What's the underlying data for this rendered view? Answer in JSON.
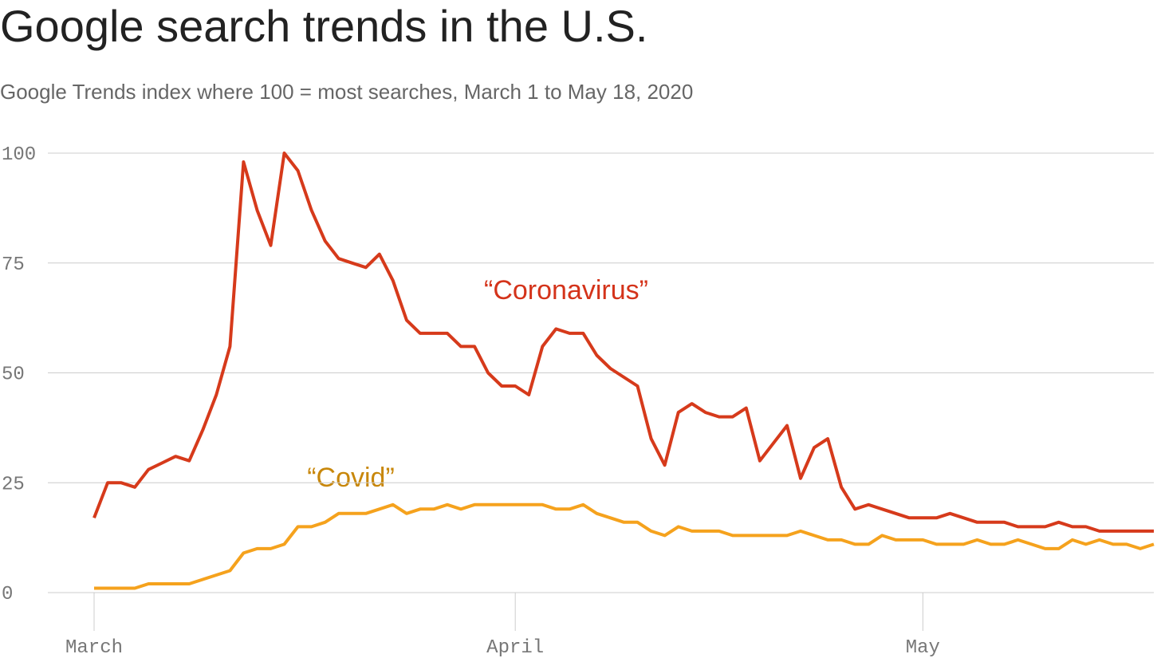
{
  "chart_data": {
    "type": "line",
    "title": "Google search trends in the U.S.",
    "subtitle": "Google Trends index where 100 = most searches, March 1 to May 18, 2020",
    "categories": [
      "March",
      null,
      null,
      null,
      null,
      null,
      null,
      null,
      null,
      null,
      null,
      null,
      null,
      null,
      null,
      null,
      null,
      null,
      null,
      null,
      null,
      null,
      null,
      null,
      null,
      null,
      null,
      null,
      null,
      null,
      null,
      "April",
      null,
      null,
      null,
      null,
      null,
      null,
      null,
      null,
      null,
      null,
      null,
      null,
      null,
      null,
      null,
      null,
      null,
      null,
      null,
      null,
      null,
      null,
      null,
      null,
      null,
      null,
      null,
      null,
      null,
      "May",
      null,
      null,
      null,
      null,
      null,
      null,
      null,
      null,
      null,
      null,
      null,
      null,
      null,
      null,
      null,
      null,
      null
    ],
    "series": [
      {
        "name": "“Coronavirus”",
        "color": "#d63a1b",
        "values": [
          17,
          25,
          25,
          24,
          28,
          29.5,
          31,
          30,
          37,
          45,
          56,
          98,
          87,
          79,
          100,
          96,
          87,
          80,
          76,
          75,
          74,
          77,
          71,
          62,
          59,
          59,
          59,
          56,
          56,
          50,
          47,
          47,
          45,
          56,
          60,
          59,
          59,
          54,
          51,
          49,
          47,
          35,
          29,
          41,
          43,
          41,
          40,
          40,
          42,
          30,
          34,
          38,
          26,
          33,
          35,
          24,
          19,
          20,
          19,
          18,
          17,
          17,
          17,
          18,
          17,
          16,
          16,
          16,
          15,
          15,
          15,
          16,
          15,
          15,
          14,
          14,
          14,
          14,
          14
        ]
      },
      {
        "name": "“Covid”",
        "color": "#f5a21d",
        "values": [
          1,
          1,
          1,
          1,
          2,
          2,
          2,
          2,
          3,
          4,
          5,
          9,
          10,
          10,
          11,
          15,
          15,
          16,
          18,
          18,
          18,
          19,
          20,
          18,
          19,
          19,
          20,
          19,
          20,
          20,
          20,
          20,
          20,
          20,
          19,
          19,
          20,
          18,
          17,
          16,
          16,
          14,
          13,
          15,
          14,
          14,
          14,
          13,
          13,
          13,
          13,
          13,
          14,
          13,
          12,
          12,
          11,
          11,
          13,
          12,
          12,
          12,
          11,
          11,
          11,
          12,
          11,
          11,
          12,
          11,
          10,
          10,
          12,
          11,
          12,
          11,
          11,
          10,
          11
        ]
      }
    ],
    "ylim": [
      0,
      100
    ],
    "yticks": [
      0,
      25,
      50,
      75,
      100
    ],
    "grid": true
  }
}
